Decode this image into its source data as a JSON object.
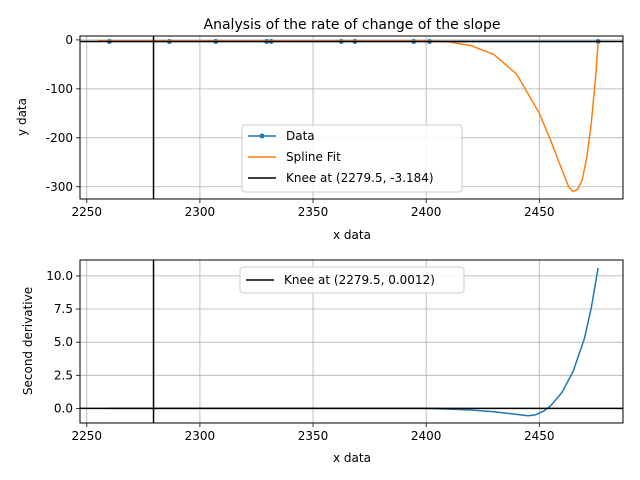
{
  "chart_data": [
    {
      "type": "line",
      "title": "Analysis of the rate of change of the slope",
      "xlabel": "x data",
      "ylabel": "y data",
      "xlim": [
        2247,
        2487
      ],
      "ylim": [
        -325,
        8
      ],
      "xticks": [
        2250,
        2300,
        2350,
        2400,
        2450
      ],
      "yticks": [
        0,
        -100,
        -200,
        -300
      ],
      "grid": true,
      "legend_position": "lower-center",
      "series": [
        {
          "name": "Data",
          "color": "#1f77b4",
          "style": "line-with-dots",
          "x": [
            2260,
            2286.5,
            2307,
            2329.5,
            2331.5,
            2362.5,
            2368.5,
            2394.5,
            2401.5,
            2476
          ],
          "y": [
            -3.2,
            -3.2,
            -3.2,
            -3.2,
            -3.2,
            -3.2,
            -3.2,
            -3.2,
            -3.2,
            -3.2
          ]
        },
        {
          "name": "Spline Fit",
          "color": "#ff7f0e",
          "x": [
            2255,
            2300,
            2350,
            2400,
            2410,
            2420,
            2430,
            2440,
            2450,
            2455,
            2460,
            2463,
            2465,
            2467,
            2469,
            2471,
            2473,
            2475,
            2476
          ],
          "y": [
            -2,
            -2,
            -2,
            -2,
            -4,
            -12,
            -30,
            -70,
            -150,
            -205,
            -265,
            -300,
            -310,
            -305,
            -285,
            -240,
            -170,
            -70,
            -3
          ]
        },
        {
          "name": "Knee at (2279.5, -3.184)",
          "color": "#000000",
          "type": "knee-lines",
          "x": 2279.5,
          "y": -3.184
        }
      ]
    },
    {
      "type": "line",
      "title": "",
      "xlabel": "x data",
      "ylabel": "Second derivative",
      "xlim": [
        2247,
        2487
      ],
      "ylim": [
        -1.1,
        11.2
      ],
      "xticks": [
        2250,
        2300,
        2350,
        2400,
        2450
      ],
      "yticks": [
        0.0,
        2.5,
        5.0,
        7.5,
        10.0
      ],
      "ytick_labels": [
        "0.0",
        "2.5",
        "5.0",
        "7.5",
        "10.0"
      ],
      "grid": true,
      "legend_position": "top-center",
      "series": [
        {
          "name": "",
          "color": "#1f77b4",
          "x": [
            2260,
            2300,
            2350,
            2400,
            2410,
            2420,
            2430,
            2440,
            2445,
            2448,
            2452,
            2455,
            2460,
            2465,
            2470,
            2473,
            2476
          ],
          "y": [
            0.0,
            0.0,
            0.0,
            0.0,
            -0.05,
            -0.12,
            -0.25,
            -0.45,
            -0.55,
            -0.5,
            -0.2,
            0.2,
            1.2,
            2.8,
            5.3,
            7.6,
            10.6
          ]
        },
        {
          "name": "Knee at (2279.5, 0.0012)",
          "color": "#000000",
          "type": "knee-lines",
          "x": 2279.5,
          "y": 0.0012
        }
      ]
    }
  ]
}
